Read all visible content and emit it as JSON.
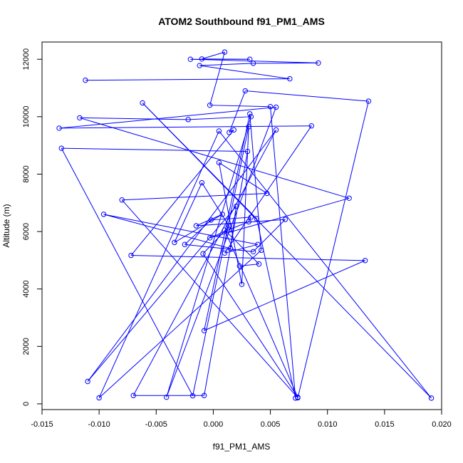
{
  "chart_data": {
    "type": "line",
    "title": "ATOM2 Southbound f91_PM1_AMS",
    "xlabel": "f91_PM1_AMS",
    "ylabel": "Altitude (m)",
    "xlim": [
      -0.015,
      0.02
    ],
    "ylim": [
      -200,
      12600
    ],
    "xticks": [
      -0.015,
      -0.01,
      -0.005,
      0.0,
      0.005,
      0.01,
      0.015,
      0.02
    ],
    "xtick_labels": [
      "-0.015",
      "-0.010",
      "-0.005",
      "0.000",
      "0.005",
      "0.010",
      "0.015",
      "0.020"
    ],
    "yticks": [
      0,
      2000,
      4000,
      6000,
      8000,
      10000,
      12000
    ],
    "ytick_labels": [
      "0",
      "2000",
      "4000",
      "6000",
      "8000",
      "10000",
      "12000"
    ],
    "grid": false,
    "colors": {
      "series": "#0000ff"
    },
    "marker": "open-circle",
    "series": [
      {
        "x": [
          -0.0112,
          0.0067,
          -0.0012,
          0.0035,
          0.0092,
          -0.002,
          0.0032,
          -0.001,
          0.001,
          -0.0003,
          0.005,
          0.0072,
          0.0038,
          -0.0062,
          0.0191,
          0.0005,
          -0.01,
          0.0042,
          0.0032,
          -0.0008,
          0.0133,
          -0.0072,
          0.0018,
          0.0014,
          0.0028,
          0.0136,
          0.0074,
          -0.008,
          0.0047,
          0.0005,
          0.0025,
          0.0031,
          -0.0018,
          -0.0133,
          0.003,
          -0.0008,
          -0.007,
          0.0055,
          -0.011,
          0.002,
          0.0015,
          -0.0096,
          0.0039,
          0.001,
          0.0086,
          -0.0135,
          0.0055,
          -0.0041,
          0.0033,
          -0.0022,
          -0.0117,
          0.0119,
          -0.0003,
          0.0014,
          0.0031,
          0.0033,
          -0.0002,
          -0.0025,
          0.0035,
          0.0063,
          -0.0015,
          0.0008,
          -0.0034,
          -0.001,
          0.0014,
          -0.0009,
          0.0074,
          0.001,
          0.004,
          0.0023
        ],
        "y": [
          11270,
          11320,
          11780,
          11860,
          11870,
          12000,
          12000,
          12010,
          12250,
          10400,
          10350,
          200,
          6450,
          10480,
          200,
          9500,
          210,
          5350,
          10100,
          2550,
          4990,
          5170,
          9540,
          9450,
          10900,
          10540,
          210,
          7100,
          7330,
          8400,
          4160,
          9650,
          280,
          8900,
          8790,
          290,
          290,
          9540,
          780,
          6880,
          5410,
          6600,
          5550,
          5250,
          9680,
          9600,
          10330,
          230,
          10000,
          9900,
          9960,
          7160,
          5780,
          6070,
          6340,
          6500,
          6400,
          5550,
          5300,
          6420,
          6200,
          6600,
          5620,
          7700,
          6180,
          5230,
          230,
          6050,
          4870,
          4800
        ]
      }
    ]
  }
}
